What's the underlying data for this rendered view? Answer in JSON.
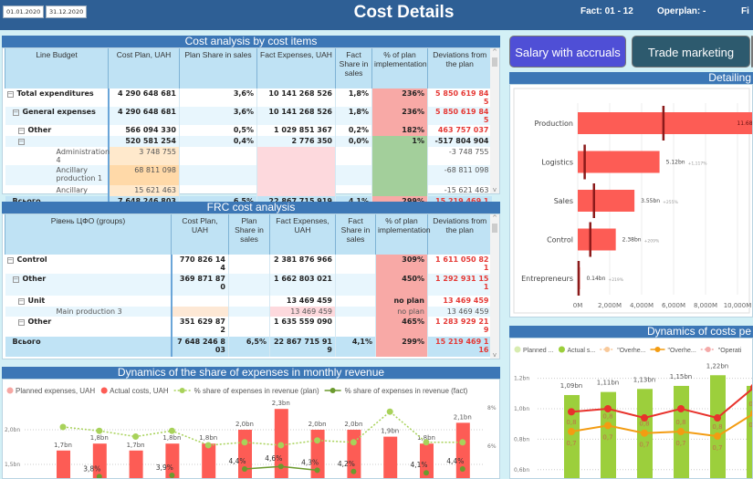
{
  "header": {
    "date_from": "01.01.2020",
    "date_to": "31.12.2020",
    "title": "Cost Details",
    "fact": "Fact: 01 - 12",
    "operplan": "Operplan: -",
    "cut_label": "Fi"
  },
  "buttons": [
    {
      "label": "Salary with accruals",
      "active": true
    },
    {
      "label": "Trade marketing",
      "active": false
    }
  ],
  "colors": {
    "header": "#2e5f95",
    "section_bar": "#3c77b6",
    "over_plan": "#f8a9a6",
    "under_plan": "#a3cf9b",
    "negative_deviation": "#e53935",
    "button_active": "#4f4fd6",
    "button_inactive": "#2d5a6e"
  },
  "table1": {
    "title": "Cost analysis by cost items",
    "columns": [
      "Line Budget",
      "Cost Plan, UAH",
      "Plan Share in sales",
      "Fact Expenses, UAH",
      "Fact Share in sales",
      "% of plan implementation",
      "Deviations from the plan"
    ],
    "rows": [
      {
        "level": 0,
        "type": "b",
        "expand": true,
        "cells": [
          "Total expenditures",
          "4 290 648 681",
          "3,6%",
          "10 141 268 526",
          "1,8%",
          "236%",
          "5 850 619 845"
        ],
        "highlight": [
          "",
          "",
          "",
          "",
          "",
          "red",
          ""
        ],
        "red": [
          6
        ]
      },
      {
        "level": 1,
        "type": "b alt",
        "expand": true,
        "cells": [
          "General expenses",
          "4 290 648 681",
          "3,6%",
          "10 141 268 526",
          "1,8%",
          "236%",
          "5 850 619 845"
        ],
        "highlight": [
          "",
          "",
          "",
          "",
          "",
          "red",
          ""
        ],
        "red": [
          6
        ]
      },
      {
        "level": 2,
        "type": "b",
        "expand": true,
        "cells": [
          "Other",
          "566 094 330",
          "0,5%",
          "1 029 851 367",
          "0,2%",
          "182%",
          "463 757 037"
        ],
        "highlight": [
          "",
          "",
          "",
          "",
          "",
          "red",
          ""
        ],
        "red": [
          6
        ]
      },
      {
        "level": 2,
        "type": "b alt",
        "expand": true,
        "cells": [
          "",
          "520 581 254",
          "0,4%",
          "2 776 350",
          "0,0%",
          "1%",
          "-517 804 904"
        ],
        "highlight": [
          "",
          "",
          "",
          "",
          "",
          "green",
          ""
        ],
        "red": []
      },
      {
        "level": 4,
        "type": "leaf",
        "expand": false,
        "cells": [
          "Administration 4",
          "3 748 755",
          "",
          "",
          "",
          "",
          "-3 748 755"
        ],
        "highlight": [
          "",
          "lorange",
          "",
          "pink",
          "",
          "green",
          ""
        ],
        "red": []
      },
      {
        "level": 4,
        "type": "leaf alt",
        "expand": false,
        "cells": [
          "Ancillary production 1",
          "68 811 098",
          "",
          "",
          "",
          "",
          "-68 811 098"
        ],
        "highlight": [
          "",
          "orange",
          "",
          "pink",
          "",
          "green",
          ""
        ],
        "red": []
      },
      {
        "level": 4,
        "type": "leaf",
        "expand": false,
        "cells": [
          "Ancillary",
          "15 621 463",
          "",
          "",
          "",
          "",
          "-15 621 463"
        ],
        "highlight": [
          "",
          "lorange",
          "",
          "pink",
          "",
          "green",
          ""
        ],
        "red": []
      },
      {
        "level": 1,
        "type": "tot",
        "expand": false,
        "cells": [
          "Всього",
          "7 648 246 803",
          "6,5%",
          "22 867 715 919",
          "4,1%",
          "299%",
          "15 219 469 116"
        ],
        "highlight": [
          "",
          "",
          "",
          "",
          "",
          "red",
          ""
        ],
        "red": [
          6
        ]
      }
    ]
  },
  "table2": {
    "title": "FRC cost analysis",
    "columns": [
      "Рівень ЦФО (groups)",
      "Cost Plan, UAH",
      "Plan Share in sales",
      "Fact Expenses, UAH",
      "Fact Share in sales",
      "% of plan implementation",
      "Deviations from the plan"
    ],
    "rows": [
      {
        "level": 0,
        "type": "b",
        "expand": true,
        "cells": [
          "Control",
          "770 826 144",
          "",
          "2 381 876 966",
          "",
          "309%",
          "1 611 050 821"
        ],
        "highlight": [
          "",
          "",
          "",
          "",
          "",
          "red",
          ""
        ],
        "red": [
          6
        ]
      },
      {
        "level": 1,
        "type": "b alt",
        "expand": true,
        "cells": [
          "Other",
          "369 871 870",
          "",
          "1 662 803 021",
          "",
          "450%",
          "1 292 931 151"
        ],
        "highlight": [
          "",
          "",
          "",
          "",
          "",
          "red",
          ""
        ],
        "red": [
          6
        ]
      },
      {
        "level": 2,
        "type": "b",
        "expand": true,
        "cells": [
          "Unit",
          "",
          "",
          "13 469 459",
          "",
          "no plan",
          "13 469 459"
        ],
        "highlight": [
          "",
          "",
          "",
          "",
          "",
          "red",
          ""
        ],
        "red": [
          6
        ]
      },
      {
        "level": 4,
        "type": "leaf alt",
        "expand": false,
        "cells": [
          "Main production 3",
          "",
          "",
          "13 469 459",
          "",
          "no plan",
          "13 469 459"
        ],
        "highlight": [
          "",
          "peach",
          "",
          "pink",
          "",
          "red",
          ""
        ],
        "red": [
          6
        ]
      },
      {
        "level": 2,
        "type": "b",
        "expand": true,
        "cells": [
          "Other",
          "351 629 872",
          "",
          "1 635 559 090",
          "",
          "465%",
          "1 283 929 219"
        ],
        "highlight": [
          "",
          "",
          "",
          "",
          "",
          "red",
          ""
        ],
        "red": [
          6
        ]
      },
      {
        "level": 1,
        "type": "tot",
        "expand": false,
        "cells": [
          "Всього",
          "7 648 246 803",
          "6,5%",
          "22 867 715 919",
          "4,1%",
          "299%",
          "15 219 469 116"
        ],
        "highlight": [
          "",
          "",
          "",
          "",
          "",
          "red",
          ""
        ],
        "red": [
          6
        ]
      }
    ]
  },
  "chart_data": [
    {
      "type": "bar",
      "title": "Detailing",
      "orientation": "horizontal",
      "categories": [
        "Production",
        "Logistics",
        "Sales",
        "Control",
        "Entrepreneurs"
      ],
      "values": [
        11.68,
        5.12,
        3.55,
        2.38,
        0.14
      ],
      "value_labels": [
        "11.68bn",
        "5.12bn",
        "3.55bn",
        "2.38bn",
        "0.14bn"
      ],
      "change_labels": [
        "+118%",
        "+1,117%",
        "+255%",
        "+209%",
        "+219%"
      ],
      "targets": [
        5.35,
        0.42,
        1.0,
        0.77,
        0.04
      ],
      "x_ticks": [
        "0M",
        "2,000M",
        "4,000M",
        "6,000M",
        "8,000M",
        "10,000M"
      ],
      "xlim": [
        0,
        12
      ],
      "grid": true,
      "colors": {
        "bar": "#fd5c55",
        "target": "#8b1a1a"
      }
    },
    {
      "type": "bar",
      "title": "Dynamics of the share of expenses in monthly revenue",
      "legend": [
        "Planned expenses, UAH",
        "Actual costs, UAH",
        "% share of expenses in revenue (plan)",
        "% share of expenses in revenue (fact)"
      ],
      "legend_position": "top-left",
      "values": [
        1.7,
        1.8,
        1.7,
        1.8,
        1.8,
        2.0,
        2.3,
        2.0,
        2.0,
        1.9,
        1.8,
        2.1
      ],
      "value_labels": [
        "1,7bn",
        "1,8bn",
        "1,7bn",
        "1,8bn",
        "1,8bn",
        "2,0bn",
        "2,3bn",
        "2,0bn",
        "2,0bn",
        "1,9bn",
        "1,8bn",
        "2,1bn"
      ],
      "plan_pct": [
        7.0,
        6.8,
        6.5,
        6.8,
        6.05,
        6.2,
        6.05,
        6.3,
        6.2,
        7.8,
        6.2,
        6.2
      ],
      "fact_pct": [
        null,
        3.8,
        null,
        3.9,
        null,
        4.4,
        4.6,
        4.3,
        4.2,
        null,
        4.1,
        4.4
      ],
      "fact_labels": [
        "",
        "3,8%",
        "",
        "3,9%",
        "",
        "4,4%",
        "4,6%",
        "4,3%",
        "4,2%",
        "",
        "4,1%",
        "4,4%"
      ],
      "y_ticks_left": [
        "2,0bn",
        "1,5bn"
      ],
      "y_ticks_right": [
        "8%",
        "6%"
      ],
      "grid": true,
      "colors": {
        "planned": "#f6a7a3",
        "actual": "#fd5c55",
        "plan_pct": "#a8d25a",
        "fact_pct": "#6b9a2e"
      }
    },
    {
      "type": "bar",
      "title": "Dynamics of costs pe",
      "legend": [
        "Planned ...",
        "Actual s...",
        "\"Overhe...",
        "\"Overhe...",
        "\"Operati"
      ],
      "legend_position": "top-left",
      "values": [
        1.09,
        1.11,
        1.13,
        1.15,
        1.22,
        1.15
      ],
      "value_labels": [
        "1,09bn",
        "1,11bn",
        "1,13bn",
        "1,15bn",
        "1,22bn",
        ""
      ],
      "red_line": [
        0.98,
        1.0,
        0.94,
        1.0,
        0.94,
        1.14
      ],
      "orange_line": [
        0.85,
        0.89,
        0.84,
        0.85,
        0.82,
        0.97
      ],
      "red_labels": [
        "0,8",
        "0,8",
        "0,8",
        "0,8",
        "0,8",
        "0,8"
      ],
      "orange_labels": [
        "0,7",
        "0,7",
        "0,7",
        "0,7",
        "0,7",
        "0,7"
      ],
      "y_ticks": [
        "1,2bn",
        "1,0bn",
        "0,8bn",
        "0,6bn"
      ],
      "ylim": [
        0.6,
        1.2
      ],
      "grid": true,
      "colors": {
        "planned": "#d8ecb0",
        "actual": "#9ccf3c",
        "overhead1": "#f8c99a",
        "overhead2": "#f39c12",
        "operating": "#f4a9a8",
        "red_line": "#e8322c"
      }
    }
  ]
}
